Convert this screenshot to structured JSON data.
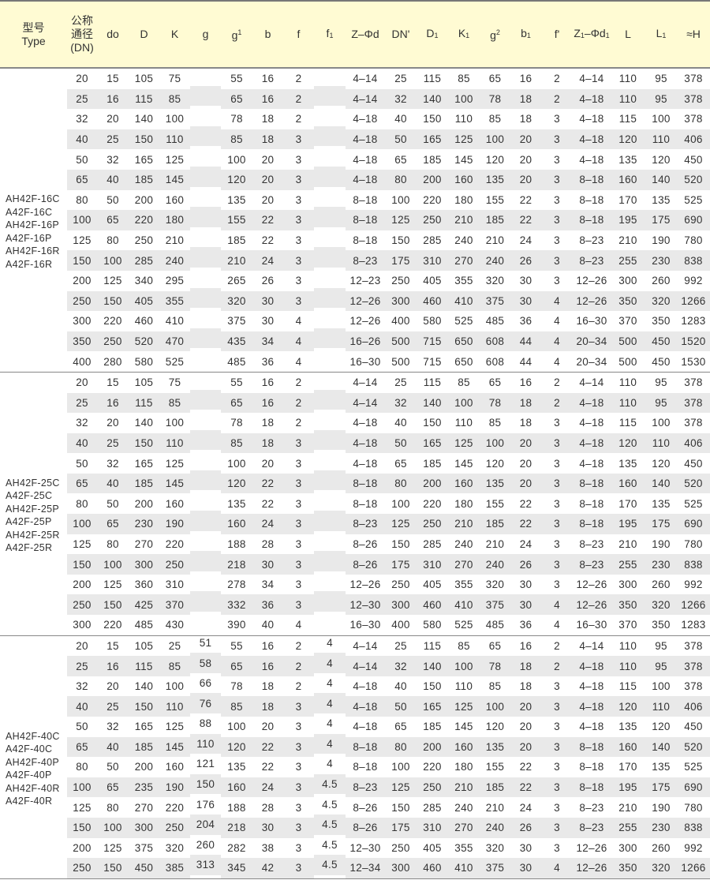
{
  "header": {
    "type_cn": "型号",
    "type_en": "Type",
    "dn_cn1": "公称",
    "dn_cn2": "通径",
    "dn_en": "(DN)",
    "columns": [
      {
        "t": "do"
      },
      {
        "t": "D"
      },
      {
        "t": "K"
      },
      {
        "t": "g"
      },
      {
        "t": "g",
        "sup": "1"
      },
      {
        "t": "b"
      },
      {
        "t": "f"
      },
      {
        "t": "f",
        "s": "1"
      },
      {
        "t": "Z–Φd"
      },
      {
        "t": "DN'"
      },
      {
        "t": "D",
        "s": "1"
      },
      {
        "t": "K",
        "s": "1"
      },
      {
        "t": "g",
        "sup": "2"
      },
      {
        "t": "b",
        "s": "1"
      },
      {
        "t": "f'"
      },
      {
        "t": "Z",
        "s": "1",
        "t2": "–Φd",
        "s2": "1"
      },
      {
        "t": "L"
      },
      {
        "t": "L",
        "s": "1"
      },
      {
        "t": "≈H"
      }
    ]
  },
  "sections": [
    {
      "types": [
        "AH42F-16C",
        "A42F-16C",
        "AH42F-16P",
        "A42F-16P",
        "AH42F-16R",
        "A42F-16R"
      ],
      "rows": [
        [
          "20",
          "15",
          "105",
          "75",
          "",
          "55",
          "16",
          "2",
          "",
          "4–14",
          "25",
          "115",
          "85",
          "65",
          "16",
          "2",
          "4–14",
          "110",
          "95",
          "378"
        ],
        [
          "25",
          "16",
          "115",
          "85",
          "",
          "65",
          "16",
          "2",
          "",
          "4–14",
          "32",
          "140",
          "100",
          "78",
          "18",
          "2",
          "4–18",
          "110",
          "95",
          "378"
        ],
        [
          "32",
          "20",
          "140",
          "100",
          "",
          "78",
          "18",
          "2",
          "",
          "4–18",
          "40",
          "150",
          "110",
          "85",
          "18",
          "3",
          "4–18",
          "115",
          "100",
          "378"
        ],
        [
          "40",
          "25",
          "150",
          "110",
          "",
          "85",
          "18",
          "3",
          "",
          "4–18",
          "50",
          "165",
          "125",
          "100",
          "20",
          "3",
          "4–18",
          "120",
          "110",
          "406"
        ],
        [
          "50",
          "32",
          "165",
          "125",
          "",
          "100",
          "20",
          "3",
          "",
          "4–18",
          "65",
          "185",
          "145",
          "120",
          "20",
          "3",
          "4–18",
          "135",
          "120",
          "450"
        ],
        [
          "65",
          "40",
          "185",
          "145",
          "",
          "120",
          "20",
          "3",
          "",
          "4–18",
          "80",
          "200",
          "160",
          "135",
          "20",
          "3",
          "8–18",
          "160",
          "140",
          "520"
        ],
        [
          "80",
          "50",
          "200",
          "160",
          "",
          "135",
          "20",
          "3",
          "",
          "8–18",
          "100",
          "220",
          "180",
          "155",
          "22",
          "3",
          "8–18",
          "170",
          "135",
          "525"
        ],
        [
          "100",
          "65",
          "220",
          "180",
          "",
          "155",
          "22",
          "3",
          "",
          "8–18",
          "125",
          "250",
          "210",
          "185",
          "22",
          "3",
          "8–18",
          "195",
          "175",
          "690"
        ],
        [
          "125",
          "80",
          "250",
          "210",
          "",
          "185",
          "22",
          "3",
          "",
          "8–18",
          "150",
          "285",
          "240",
          "210",
          "24",
          "3",
          "8–23",
          "210",
          "190",
          "780"
        ],
        [
          "150",
          "100",
          "285",
          "240",
          "",
          "210",
          "24",
          "3",
          "",
          "8–23",
          "175",
          "310",
          "270",
          "240",
          "26",
          "3",
          "8–23",
          "255",
          "230",
          "838"
        ],
        [
          "200",
          "125",
          "340",
          "295",
          "",
          "265",
          "26",
          "3",
          "",
          "12–23",
          "250",
          "405",
          "355",
          "320",
          "30",
          "3",
          "12–26",
          "300",
          "260",
          "992"
        ],
        [
          "250",
          "150",
          "405",
          "355",
          "",
          "320",
          "30",
          "3",
          "",
          "12–26",
          "300",
          "460",
          "410",
          "375",
          "30",
          "4",
          "12–26",
          "350",
          "320",
          "1266"
        ],
        [
          "300",
          "220",
          "460",
          "410",
          "",
          "375",
          "30",
          "4",
          "",
          "12–26",
          "400",
          "580",
          "525",
          "485",
          "36",
          "4",
          "16–30",
          "370",
          "350",
          "1283"
        ],
        [
          "350",
          "250",
          "520",
          "470",
          "",
          "435",
          "34",
          "4",
          "",
          "16–26",
          "500",
          "715",
          "650",
          "608",
          "44",
          "4",
          "20–34",
          "500",
          "450",
          "1520"
        ],
        [
          "400",
          "280",
          "580",
          "525",
          "",
          "485",
          "36",
          "4",
          "",
          "16–30",
          "500",
          "715",
          "650",
          "608",
          "44",
          "4",
          "20–34",
          "500",
          "450",
          "1530"
        ]
      ]
    },
    {
      "types": [
        "AH42F-25C",
        "A42F-25C",
        "AH42F-25P",
        "A42F-25P",
        "AH42F-25R",
        "A42F-25R"
      ],
      "rows": [
        [
          "20",
          "15",
          "105",
          "75",
          "",
          "55",
          "16",
          "2",
          "",
          "4–14",
          "25",
          "115",
          "85",
          "65",
          "16",
          "2",
          "4–14",
          "110",
          "95",
          "378"
        ],
        [
          "25",
          "16",
          "115",
          "85",
          "",
          "65",
          "16",
          "2",
          "",
          "4–14",
          "32",
          "140",
          "100",
          "78",
          "18",
          "2",
          "4–18",
          "110",
          "95",
          "378"
        ],
        [
          "32",
          "20",
          "140",
          "100",
          "",
          "78",
          "18",
          "2",
          "",
          "4–18",
          "40",
          "150",
          "110",
          "85",
          "18",
          "3",
          "4–18",
          "115",
          "100",
          "378"
        ],
        [
          "40",
          "25",
          "150",
          "110",
          "",
          "85",
          "18",
          "3",
          "",
          "4–18",
          "50",
          "165",
          "125",
          "100",
          "20",
          "3",
          "4–18",
          "120",
          "110",
          "406"
        ],
        [
          "50",
          "32",
          "165",
          "125",
          "",
          "100",
          "20",
          "3",
          "",
          "4–18",
          "65",
          "185",
          "145",
          "120",
          "20",
          "3",
          "4–18",
          "135",
          "120",
          "450"
        ],
        [
          "65",
          "40",
          "185",
          "145",
          "",
          "120",
          "22",
          "3",
          "",
          "8–18",
          "80",
          "200",
          "160",
          "135",
          "20",
          "3",
          "8–18",
          "160",
          "140",
          "520"
        ],
        [
          "80",
          "50",
          "200",
          "160",
          "",
          "135",
          "22",
          "3",
          "",
          "8–18",
          "100",
          "220",
          "180",
          "155",
          "22",
          "3",
          "8–18",
          "170",
          "135",
          "525"
        ],
        [
          "100",
          "65",
          "230",
          "190",
          "",
          "160",
          "24",
          "3",
          "",
          "8–23",
          "125",
          "250",
          "210",
          "185",
          "22",
          "3",
          "8–18",
          "195",
          "175",
          "690"
        ],
        [
          "125",
          "80",
          "270",
          "220",
          "",
          "188",
          "28",
          "3",
          "",
          "8–26",
          "150",
          "285",
          "240",
          "210",
          "24",
          "3",
          "8–23",
          "210",
          "190",
          "780"
        ],
        [
          "150",
          "100",
          "300",
          "250",
          "",
          "218",
          "30",
          "3",
          "",
          "8–26",
          "175",
          "310",
          "270",
          "240",
          "26",
          "3",
          "8–23",
          "255",
          "230",
          "838"
        ],
        [
          "200",
          "125",
          "360",
          "310",
          "",
          "278",
          "34",
          "3",
          "",
          "12–26",
          "250",
          "405",
          "355",
          "320",
          "30",
          "3",
          "12–26",
          "300",
          "260",
          "992"
        ],
        [
          "250",
          "150",
          "425",
          "370",
          "",
          "332",
          "36",
          "3",
          "",
          "12–30",
          "300",
          "460",
          "410",
          "375",
          "30",
          "4",
          "12–26",
          "350",
          "320",
          "1266"
        ],
        [
          "300",
          "220",
          "485",
          "430",
          "",
          "390",
          "40",
          "4",
          "",
          "16–30",
          "400",
          "580",
          "525",
          "485",
          "36",
          "4",
          "16–30",
          "370",
          "350",
          "1283"
        ]
      ]
    },
    {
      "types": [
        "AH42F-40C",
        "A42F-40C",
        "AH42F-40P",
        "A42F-40P",
        "AH42F-40R",
        "A42F-40R"
      ],
      "rows": [
        [
          "20",
          "15",
          "105",
          "25",
          "51",
          "55",
          "16",
          "2",
          "4",
          "4–14",
          "25",
          "115",
          "85",
          "65",
          "16",
          "2",
          "4–14",
          "110",
          "95",
          "378"
        ],
        [
          "25",
          "16",
          "115",
          "85",
          "58",
          "65",
          "16",
          "2",
          "4",
          "4–14",
          "32",
          "140",
          "100",
          "78",
          "18",
          "2",
          "4–18",
          "110",
          "95",
          "378"
        ],
        [
          "32",
          "20",
          "140",
          "100",
          "66",
          "78",
          "18",
          "2",
          "4",
          "4–18",
          "40",
          "150",
          "110",
          "85",
          "18",
          "3",
          "4–18",
          "115",
          "100",
          "378"
        ],
        [
          "40",
          "25",
          "150",
          "110",
          "76",
          "85",
          "18",
          "3",
          "4",
          "4–18",
          "50",
          "165",
          "125",
          "100",
          "20",
          "3",
          "4–18",
          "120",
          "110",
          "406"
        ],
        [
          "50",
          "32",
          "165",
          "125",
          "88",
          "100",
          "20",
          "3",
          "4",
          "4–18",
          "65",
          "185",
          "145",
          "120",
          "20",
          "3",
          "4–18",
          "135",
          "120",
          "450"
        ],
        [
          "65",
          "40",
          "185",
          "145",
          "110",
          "120",
          "22",
          "3",
          "4",
          "8–18",
          "80",
          "200",
          "160",
          "135",
          "20",
          "3",
          "8–18",
          "160",
          "140",
          "520"
        ],
        [
          "80",
          "50",
          "200",
          "160",
          "121",
          "135",
          "22",
          "3",
          "4",
          "8–18",
          "100",
          "220",
          "180",
          "155",
          "22",
          "3",
          "8–18",
          "170",
          "135",
          "525"
        ],
        [
          "100",
          "65",
          "235",
          "190",
          "150",
          "160",
          "24",
          "3",
          "4.5",
          "8–23",
          "125",
          "250",
          "210",
          "185",
          "22",
          "3",
          "8–18",
          "195",
          "175",
          "690"
        ],
        [
          "125",
          "80",
          "270",
          "220",
          "176",
          "188",
          "28",
          "3",
          "4.5",
          "8–26",
          "150",
          "285",
          "240",
          "210",
          "24",
          "3",
          "8–23",
          "210",
          "190",
          "780"
        ],
        [
          "150",
          "100",
          "300",
          "250",
          "204",
          "218",
          "30",
          "3",
          "4.5",
          "8–26",
          "175",
          "310",
          "270",
          "240",
          "26",
          "3",
          "8–23",
          "255",
          "230",
          "838"
        ],
        [
          "200",
          "125",
          "375",
          "320",
          "260",
          "282",
          "38",
          "3",
          "4.5",
          "12–30",
          "250",
          "405",
          "355",
          "320",
          "30",
          "3",
          "12–26",
          "300",
          "260",
          "992"
        ],
        [
          "250",
          "150",
          "450",
          "385",
          "313",
          "345",
          "42",
          "3",
          "4.5",
          "12–34",
          "300",
          "460",
          "410",
          "375",
          "30",
          "4",
          "12–26",
          "350",
          "320",
          "1266"
        ]
      ]
    }
  ],
  "colors": {
    "header_bg": "#fffbd3",
    "stripe": "#e9e9e9",
    "rule": "#888888"
  }
}
